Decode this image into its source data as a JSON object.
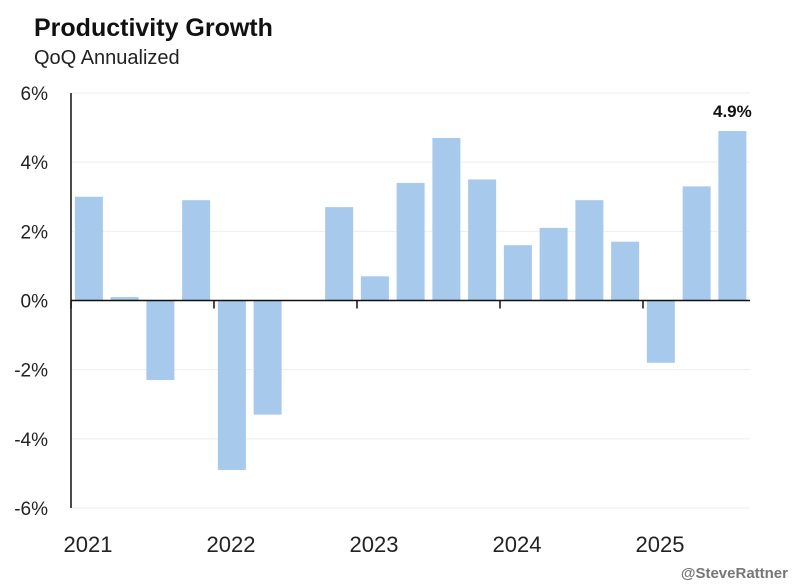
{
  "chart_data": {
    "type": "bar",
    "title": "Productivity Growth",
    "subtitle": "QoQ Annualized",
    "credit": "@SteveRattner",
    "xlabel": "",
    "ylabel": "",
    "ylim": [
      -6,
      6
    ],
    "yticks": [
      "6%",
      "4%",
      "2%",
      "0%",
      "-2%",
      "-4%",
      "-6%"
    ],
    "ytick_values": [
      6,
      4,
      2,
      0,
      -2,
      -4,
      -6
    ],
    "xticks": [
      "2021",
      "2022",
      "2023",
      "2024",
      "2025"
    ],
    "grid": true,
    "bar_color": "#a7c9eb",
    "categories": [
      "2021 Q1",
      "2021 Q2",
      "2021 Q3",
      "2021 Q4",
      "2022 Q1",
      "2022 Q2",
      "2022 Q3",
      "2022 Q4",
      "2023 Q1",
      "2023 Q2",
      "2023 Q3",
      "2023 Q4",
      "2024 Q1",
      "2024 Q2",
      "2024 Q3",
      "2024 Q4",
      "2025 Q1",
      "2025 Q2",
      "2025 Q3"
    ],
    "values": [
      3.0,
      0.1,
      -2.3,
      2.9,
      -4.9,
      -3.3,
      0.0,
      2.7,
      0.7,
      3.4,
      4.7,
      3.5,
      1.6,
      2.1,
      2.9,
      1.7,
      -1.8,
      3.3,
      4.9
    ],
    "annotations": [
      {
        "category": "2025 Q3",
        "text": "4.9%"
      }
    ]
  }
}
